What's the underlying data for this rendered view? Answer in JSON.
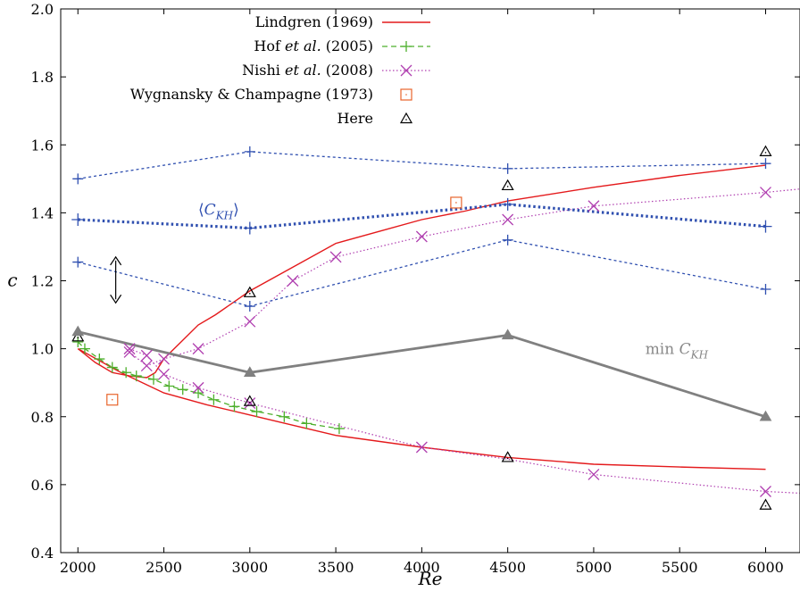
{
  "chart_data": {
    "type": "line",
    "xlabel": "Re",
    "ylabel": "c",
    "xlim": [
      1900,
      6200
    ],
    "ylim": [
      0.4,
      2.0
    ],
    "xticks": [
      2000,
      2500,
      3000,
      3500,
      4000,
      4500,
      5000,
      5500,
      6000
    ],
    "yticks": [
      0.4,
      0.6,
      0.8,
      1.0,
      1.2,
      1.4,
      1.6,
      1.8,
      2.0
    ],
    "xtick_labels": [
      "2000",
      "2500",
      "3000",
      "3500",
      "4000",
      "4500",
      "5000",
      "5500",
      "6000"
    ],
    "ytick_labels": [
      "0.4",
      "0.6",
      "0.8",
      "1.0",
      "1.2",
      "1.4",
      "1.6",
      "1.8",
      "2.0"
    ],
    "grid": false,
    "legend_position": "top-center",
    "series": [
      {
        "name": "Lindgren (1969)",
        "style": "solid-line",
        "color": "#e41a1c",
        "lines": [
          [
            [
              2000,
              1.0
            ],
            [
              2100,
              0.96
            ],
            [
              2200,
              0.93
            ],
            [
              2300,
              0.92
            ],
            [
              2400,
              0.915
            ],
            [
              2450,
              0.93
            ],
            [
              2500,
              0.97
            ],
            [
              2600,
              1.02
            ],
            [
              2700,
              1.07
            ],
            [
              2800,
              1.1
            ],
            [
              3000,
              1.17
            ],
            [
              3250,
              1.24
            ],
            [
              3500,
              1.31
            ],
            [
              3750,
              1.345
            ],
            [
              4000,
              1.38
            ],
            [
              4250,
              1.405
            ],
            [
              4500,
              1.435
            ],
            [
              5000,
              1.475
            ],
            [
              5500,
              1.51
            ],
            [
              6000,
              1.54
            ]
          ],
          [
            [
              2000,
              1.0
            ],
            [
              2250,
              0.93
            ],
            [
              2500,
              0.87
            ],
            [
              2750,
              0.835
            ],
            [
              3000,
              0.805
            ],
            [
              3250,
              0.775
            ],
            [
              3500,
              0.745
            ],
            [
              4000,
              0.71
            ],
            [
              4500,
              0.68
            ],
            [
              5000,
              0.66
            ],
            [
              5500,
              0.652
            ],
            [
              6000,
              0.645
            ]
          ]
        ]
      },
      {
        "name": "Hof et al. (2005)",
        "style": "dashed-line-plus",
        "color": "#4daf2c",
        "points": [
          [
            2000,
            1.02
          ],
          [
            2040,
            1.0
          ],
          [
            2125,
            0.97
          ],
          [
            2200,
            0.945
          ],
          [
            2280,
            0.93
          ],
          [
            2340,
            0.92
          ],
          [
            2440,
            0.91
          ],
          [
            2530,
            0.89
          ],
          [
            2610,
            0.88
          ],
          [
            2700,
            0.87
          ],
          [
            2790,
            0.85
          ],
          [
            2910,
            0.83
          ],
          [
            3040,
            0.815
          ],
          [
            3200,
            0.8
          ],
          [
            3330,
            0.78
          ],
          [
            3520,
            0.765
          ]
        ]
      },
      {
        "name": "Nishi et al. (2008)",
        "style": "dotted-line-cross",
        "color": "#b03fb0",
        "lines": [
          [
            [
              2300,
              0.99
            ],
            [
              2400,
              0.95
            ],
            [
              2500,
              0.97
            ],
            [
              2700,
              1.0
            ],
            [
              3000,
              1.08
            ],
            [
              3250,
              1.2
            ],
            [
              3500,
              1.27
            ],
            [
              4000,
              1.33
            ],
            [
              4500,
              1.38
            ],
            [
              5000,
              1.42
            ],
            [
              6000,
              1.46
            ],
            [
              6200,
              1.47
            ]
          ],
          [
            [
              2300,
              1.0
            ],
            [
              2400,
              0.98
            ],
            [
              2500,
              0.925
            ],
            [
              2700,
              0.885
            ],
            [
              3000,
              0.84
            ],
            [
              4000,
              0.71
            ],
            [
              4500,
              0.675
            ],
            [
              5000,
              0.63
            ],
            [
              6000,
              0.58
            ],
            [
              6200,
              0.575
            ]
          ]
        ],
        "markers": [
          [
            2300,
            0.99
          ],
          [
            2400,
            0.95
          ],
          [
            2500,
            0.97
          ],
          [
            2700,
            1.0
          ],
          [
            3000,
            1.08
          ],
          [
            3250,
            1.2
          ],
          [
            3500,
            1.27
          ],
          [
            4000,
            1.33
          ],
          [
            4500,
            1.38
          ],
          [
            5000,
            1.42
          ],
          [
            6000,
            1.46
          ],
          [
            2300,
            1.0
          ],
          [
            2400,
            0.98
          ],
          [
            2500,
            0.925
          ],
          [
            2700,
            0.885
          ],
          [
            3000,
            0.84
          ],
          [
            4000,
            0.71
          ],
          [
            5000,
            0.63
          ],
          [
            6000,
            0.58
          ]
        ]
      },
      {
        "name": "Wygnansky & Champagne (1973)",
        "style": "square-marker",
        "color": "#e8642c",
        "points": [
          [
            2200,
            0.85
          ],
          [
            4200,
            1.43
          ]
        ]
      },
      {
        "name": "Here",
        "style": "triangle-marker",
        "color": "#000000",
        "points": [
          [
            2000,
            1.035
          ],
          [
            3000,
            1.165
          ],
          [
            3000,
            0.845
          ],
          [
            4500,
            1.48
          ],
          [
            4500,
            0.68
          ],
          [
            6000,
            1.58
          ],
          [
            6000,
            0.54
          ]
        ]
      },
      {
        "style": "dotted-line-plus",
        "color": "#3050b0",
        "points": [
          [
            2000,
            1.5
          ],
          [
            3000,
            1.58
          ],
          [
            4500,
            1.53
          ],
          [
            6000,
            1.545
          ]
        ]
      },
      {
        "style": "dotted-line-plus",
        "color": "#3050b0",
        "points": [
          [
            2000,
            1.255
          ],
          [
            3000,
            1.125
          ],
          [
            4500,
            1.32
          ],
          [
            6000,
            1.175
          ]
        ]
      },
      {
        "style": "thick-dotted-line-plus",
        "color": "#3050b0",
        "points": [
          [
            2000,
            1.38
          ],
          [
            3000,
            1.355
          ],
          [
            4500,
            1.425
          ],
          [
            6000,
            1.36
          ]
        ]
      },
      {
        "style": "thick-solid-line-triangle",
        "color": "#808080",
        "points": [
          [
            2000,
            1.05
          ],
          [
            3000,
            0.93
          ],
          [
            4500,
            1.04
          ],
          [
            6000,
            0.8
          ]
        ]
      }
    ],
    "annotations": {
      "ckh_mean": {
        "label": "⟨C_KH⟩",
        "x": 2700,
        "y": 1.395,
        "color": "#3050b0"
      },
      "ckh_min": {
        "label": "min C_KH",
        "x": 5300,
        "y": 0.985,
        "color": "#888888"
      },
      "double_arrow": {
        "x": 2220,
        "y_from": 1.27,
        "y_to": 1.135
      }
    }
  }
}
